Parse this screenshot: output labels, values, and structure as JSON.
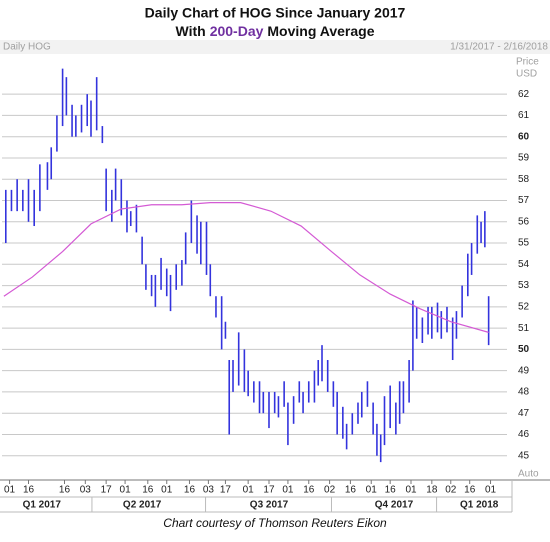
{
  "chart_data": {
    "type": "range-bar",
    "title": "Daily Chart of HOG Since January 2017",
    "subtitle": [
      "With",
      "200-Day",
      "Moving Average"
    ],
    "symbol_label": "Daily HOG",
    "date_range": "1/31/2017 - 2/16/2018",
    "y_axis_label": [
      "Price",
      "USD"
    ],
    "scale_label": "Auto",
    "caption": "Chart courtesy of Thomson Reuters Eikon",
    "color": "#3333dd",
    "x": [
      1,
      4,
      7,
      10,
      13,
      16,
      19,
      23,
      25,
      28,
      31,
      33,
      36,
      38,
      41,
      44,
      46,
      49,
      52,
      54,
      57,
      59,
      62,
      65,
      67,
      70,
      73,
      75,
      78,
      80,
      83,
      86,
      88,
      91,
      94,
      96,
      99,
      102,
      104,
      107,
      109,
      112,
      115,
      117,
      119,
      121,
      124,
      127,
      129,
      132,
      135,
      137,
      140,
      143,
      145,
      148,
      150,
      153,
      156,
      158,
      161,
      164,
      166,
      168,
      171,
      174,
      176,
      179,
      181,
      184,
      187,
      189,
      192,
      195,
      197,
      199,
      201,
      204,
      207,
      209,
      211,
      214,
      216,
      218,
      221,
      224,
      226,
      229,
      231,
      234,
      237,
      239,
      242,
      245,
      247,
      250,
      252,
      254,
      256
    ],
    "high": [
      57.5,
      57.5,
      58,
      57.5,
      58,
      57.5,
      58.7,
      58.8,
      59.5,
      61,
      63.2,
      62.8,
      61.5,
      61,
      61.5,
      62,
      61.7,
      62.8,
      60.5,
      58.5,
      57.5,
      58.5,
      58,
      57,
      56.5,
      56.8,
      55.3,
      54,
      53.5,
      53.5,
      54.3,
      53.8,
      53.5,
      54,
      54.2,
      55.5,
      57,
      56.3,
      56,
      56,
      54,
      52.5,
      52.5,
      51.3,
      49.5,
      49.5,
      50.8,
      50,
      49,
      48.5,
      48.5,
      48,
      48,
      48,
      47.8,
      48.5,
      47.5,
      47.8,
      48.5,
      48,
      48.5,
      49,
      49.5,
      50.2,
      49.5,
      48.5,
      48,
      47.3,
      46.5,
      47,
      47.5,
      48,
      48.5,
      47.5,
      46.5,
      46,
      47.8,
      48.3,
      47.5,
      48.5,
      48.5,
      49.5,
      52.3,
      52,
      51.5,
      52,
      52,
      52.2,
      51.8,
      52,
      51.5,
      51.8,
      53,
      54.5,
      55,
      56.3,
      56,
      56.5,
      52.5
    ],
    "low": [
      55,
      56.5,
      56.5,
      56.5,
      56,
      55.8,
      56.5,
      57.5,
      58,
      59.3,
      60.5,
      61,
      60,
      60,
      60.2,
      60.5,
      60,
      60.3,
      59.7,
      56.5,
      56,
      57,
      56.3,
      55.5,
      55.8,
      55.5,
      54,
      52.8,
      52.5,
      52,
      52.8,
      52.5,
      51.8,
      52.8,
      53,
      54,
      55,
      54.5,
      54,
      53.5,
      52.5,
      51.5,
      50,
      50.5,
      46,
      48,
      48.3,
      48,
      47.8,
      47.5,
      47,
      47,
      46.3,
      47,
      46.8,
      47.3,
      45.5,
      46.5,
      47.5,
      47,
      47.5,
      47.5,
      48.3,
      48.5,
      48,
      47.3,
      46,
      45.8,
      45.3,
      46,
      46.5,
      46.8,
      47.3,
      46,
      45,
      44.7,
      45.5,
      46.3,
      46,
      46.5,
      47,
      47.5,
      49,
      50.5,
      50.3,
      50.7,
      50.5,
      50.8,
      50.5,
      50.8,
      49.5,
      50.5,
      51.5,
      52.5,
      53.5,
      54.5,
      55,
      54.8,
      50.2
    ],
    "moving_average": {
      "color": "#d45ad4",
      "x": [
        0,
        15,
        31,
        46,
        62,
        78,
        94,
        109,
        125,
        141,
        157,
        173,
        188,
        204,
        220,
        236,
        256
      ],
      "values": [
        52.5,
        53.4,
        54.6,
        55.9,
        56.6,
        56.8,
        56.8,
        56.9,
        56.9,
        56.5,
        55.8,
        54.6,
        53.5,
        52.6,
        51.9,
        51.3,
        50.8
      ]
    },
    "xlim": [
      -1,
      262
    ],
    "ylim": [
      44,
      63.7
    ],
    "yticks": [
      45,
      46,
      47,
      48,
      49,
      50,
      51,
      52,
      53,
      54,
      55,
      56,
      57,
      58,
      59,
      60,
      61,
      62
    ],
    "xticks": [
      {
        "value": 3,
        "label": "01"
      },
      {
        "value": 13,
        "label": "16"
      },
      {
        "value": 32,
        "label": "16"
      },
      {
        "value": 43,
        "label": "03"
      },
      {
        "value": 54,
        "label": "17"
      },
      {
        "value": 64,
        "label": "01"
      },
      {
        "value": 76,
        "label": "16"
      },
      {
        "value": 86,
        "label": "01"
      },
      {
        "value": 98,
        "label": "16"
      },
      {
        "value": 108,
        "label": "03"
      },
      {
        "value": 117,
        "label": "17"
      },
      {
        "value": 129,
        "label": "01"
      },
      {
        "value": 140,
        "label": "17"
      },
      {
        "value": 150,
        "label": "01"
      },
      {
        "value": 161,
        "label": "16"
      },
      {
        "value": 172,
        "label": "02"
      },
      {
        "value": 183,
        "label": "16"
      },
      {
        "value": 194,
        "label": "01"
      },
      {
        "value": 204,
        "label": "16"
      },
      {
        "value": 215,
        "label": "01"
      },
      {
        "value": 226,
        "label": "18"
      },
      {
        "value": 236,
        "label": "02"
      },
      {
        "value": 246,
        "label": "16"
      },
      {
        "value": 257,
        "label": "01"
      }
    ],
    "quarters": [
      {
        "value": 20,
        "label": "Q1 2017"
      },
      {
        "value": 73,
        "label": "Q2 2017"
      },
      {
        "value": 140,
        "label": "Q3 2017"
      },
      {
        "value": 206,
        "label": "Q4 2017"
      },
      {
        "value": 251,
        "label": "Q1 2018"
      }
    ],
    "grid": true
  }
}
